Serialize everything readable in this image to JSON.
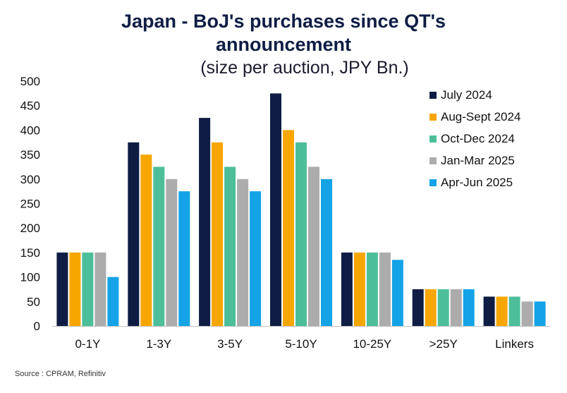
{
  "title": "Japan - BoJ's purchases since QT's announcement",
  "title_line1": "Japan - BoJ's purchases since QT's",
  "title_line2": "announcement",
  "subtitle": "(size per auction, JPY Bn.)",
  "source": "Source : CPRAM, Refinitiv",
  "chart_data": {
    "type": "bar",
    "title": "Japan - BoJ's purchases since QT's announcement",
    "subtitle": "(size per auction, JPY Bn.)",
    "xlabel": "",
    "ylabel": "",
    "ylim": [
      0,
      500
    ],
    "yticks": [
      0,
      50,
      100,
      150,
      200,
      250,
      300,
      350,
      400,
      450,
      500
    ],
    "grid": false,
    "legend_position": "top-right",
    "categories": [
      "0-1Y",
      "1-3Y",
      "3-5Y",
      "5-10Y",
      "10-25Y",
      ">25Y",
      "Linkers"
    ],
    "series": [
      {
        "name": "July 2024",
        "color": "#0f1d44",
        "values": [
          150,
          375,
          425,
          475,
          150,
          75,
          60
        ]
      },
      {
        "name": "Aug-Sept 2024",
        "color": "#f7a600",
        "values": [
          150,
          350,
          375,
          400,
          150,
          75,
          60
        ]
      },
      {
        "name": "Oct-Dec 2024",
        "color": "#4cbf9a",
        "values": [
          150,
          325,
          325,
          375,
          150,
          75,
          60
        ]
      },
      {
        "name": "Jan-Mar 2025",
        "color": "#acacac",
        "values": [
          150,
          300,
          300,
          325,
          150,
          75,
          50
        ]
      },
      {
        "name": "Apr-Jun 2025",
        "color": "#13a3e6",
        "values": [
          100,
          275,
          275,
          300,
          135,
          75,
          50
        ]
      }
    ]
  }
}
